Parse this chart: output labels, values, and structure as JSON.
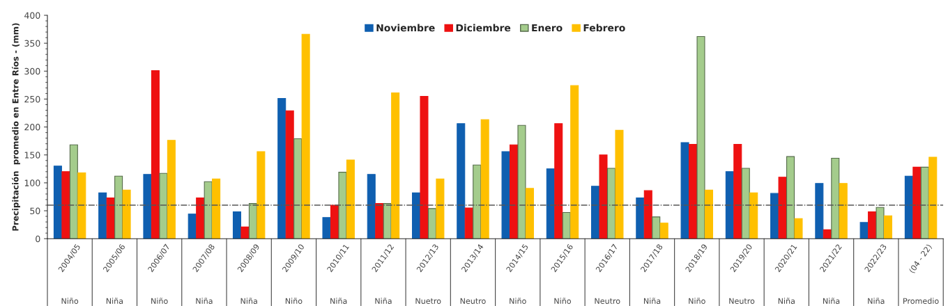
{
  "chart_data": {
    "type": "bar",
    "ylabel": "Precipitación  promedio en Entre Ríos - (mm)",
    "categories": [
      "2004/05\nNiño",
      "2005/06\nNiña",
      "2006/07\nNiño",
      "2007/08\nNiña",
      "2008/09\nNiña",
      "2009/10\nNiño",
      "2010/11\nNiña",
      "2011/12\nNiña",
      "2012/13\nNuetro",
      "2013/14\nNeutro",
      "2014/15\nNiño",
      "2015/16\nNiño",
      "2016/17\nNeutro",
      "2017/18\nNiña",
      "2018/19\nNiño",
      "2019/20\nNeutro",
      "2020/21\nNiña",
      "2021/22\nNiña",
      "2022/23\nNiña",
      "(04 - 22)\nPromedio"
    ],
    "series": [
      {
        "name": "Noviembre",
        "color": "#0f5fb0",
        "values": [
          130,
          82,
          115,
          44,
          48,
          251,
          38,
          115,
          82,
          206,
          156,
          125,
          94,
          73,
          172,
          120,
          81,
          99,
          29,
          112
        ]
      },
      {
        "name": "Diciembre",
        "color": "#ee1111",
        "values": [
          120,
          73,
          301,
          73,
          21,
          229,
          60,
          63,
          255,
          55,
          168,
          206,
          150,
          86,
          169,
          169,
          110,
          16,
          48,
          128
        ]
      },
      {
        "name": "Enero",
        "color": "#a4cc8c",
        "values": [
          168,
          112,
          117,
          102,
          63,
          179,
          119,
          63,
          54,
          132,
          203,
          47,
          126,
          39,
          362,
          126,
          147,
          144,
          56,
          128
        ]
      },
      {
        "name": "Febrero",
        "color": "#ffc000",
        "values": [
          118,
          87,
          176,
          107,
          156,
          366,
          141,
          261,
          107,
          213,
          90,
          274,
          194,
          28,
          87,
          82,
          36,
          99,
          41,
          146
        ]
      }
    ],
    "ylim": [
      0,
      400
    ],
    "yticks": [
      0,
      50,
      100,
      150,
      200,
      250,
      300,
      350,
      400
    ],
    "ref_lines": [
      {
        "axis": "y",
        "value": 60,
        "color": "#555555",
        "line_style": "dashdot"
      }
    ],
    "legend": "top",
    "grid": false
  }
}
